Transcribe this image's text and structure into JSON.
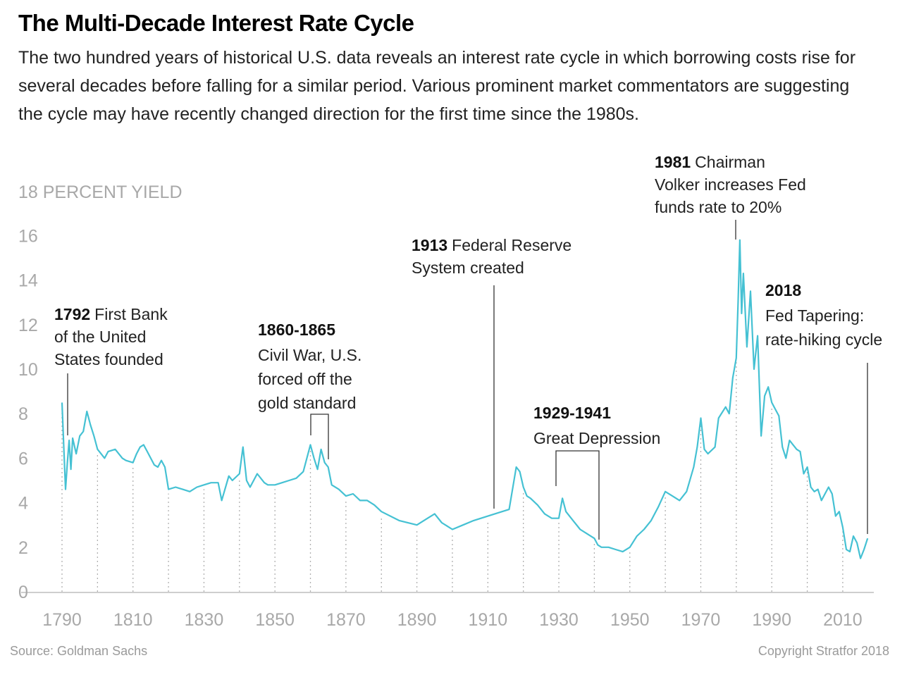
{
  "header": {
    "title": "The Multi-Decade Interest Rate Cycle",
    "subtitle": "The two hundred years of historical U.S. data reveals an interest rate cycle in which borrowing costs rise for several decades before falling for a similar period. Various prominent market commentators are suggesting the cycle may have recently changed direction for the first time since the 1980s."
  },
  "footer": {
    "source": "Source: Goldman Sachs",
    "copyright": "Copyright Stratfor 2018"
  },
  "colors": {
    "line": "#45c1d3",
    "axis": "#bdbdbd",
    "grid_dots": "#b0b0b0",
    "annotation_line": "#333333"
  },
  "chart_data": {
    "type": "line",
    "title": "The Multi-Decade Interest Rate Cycle",
    "ylabel": "18 PERCENT YIELD",
    "xlim": [
      1790,
      2018
    ],
    "ylim": [
      0,
      18
    ],
    "x_ticks": [
      "1790",
      "1810",
      "1830",
      "1850",
      "1870",
      "1890",
      "1910",
      "1930",
      "1950",
      "1970",
      "1990",
      "2010"
    ],
    "y_ticks": [
      "0",
      "2",
      "4",
      "6",
      "8",
      "10",
      "12",
      "14",
      "16"
    ],
    "grid": "dotted vertical lines at decade ticks",
    "series": [
      {
        "name": "",
        "x": [
          1790,
          1790.5,
          1791,
          1791.5,
          1792,
          1792.5,
          1793,
          1794,
          1795,
          1796,
          1797,
          1798,
          1799,
          1800,
          1801,
          1802,
          1803,
          1805,
          1807,
          1808,
          1810,
          1811,
          1812,
          1813,
          1814,
          1815,
          1816,
          1817,
          1818,
          1819,
          1820,
          1822,
          1824,
          1826,
          1828,
          1830,
          1832,
          1834,
          1835,
          1837,
          1838,
          1840,
          1841,
          1842,
          1843,
          1845,
          1847,
          1848,
          1850,
          1852,
          1854,
          1856,
          1858,
          1860,
          1861,
          1862,
          1863,
          1864,
          1865,
          1866,
          1868,
          1870,
          1872,
          1874,
          1876,
          1878,
          1880,
          1885,
          1890,
          1893,
          1895,
          1897,
          1900,
          1903,
          1906,
          1910,
          1914,
          1916,
          1918,
          1919,
          1920,
          1921,
          1922,
          1924,
          1926,
          1928,
          1930,
          1931,
          1932,
          1934,
          1936,
          1938,
          1940,
          1941,
          1942,
          1944,
          1946,
          1948,
          1950,
          1952,
          1954,
          1956,
          1958,
          1960,
          1962,
          1964,
          1966,
          1968,
          1969,
          1970,
          1971,
          1972,
          1974,
          1975,
          1977,
          1978,
          1979,
          1980,
          1980.5,
          1981,
          1981.5,
          1982,
          1983,
          1984,
          1985,
          1986,
          1987,
          1988,
          1989,
          1990,
          1991,
          1992,
          1993,
          1994,
          1995,
          1996,
          1997,
          1998,
          1999,
          2000,
          2001,
          2002,
          2003,
          2004,
          2005,
          2006,
          2007,
          2008,
          2009,
          2010,
          2011,
          2012,
          2013,
          2014,
          2015,
          2016,
          2017
        ],
        "y": [
          8.5,
          6.5,
          4.6,
          5.8,
          6.8,
          5.5,
          6.9,
          6.2,
          7.0,
          7.2,
          8.1,
          7.5,
          7.0,
          6.4,
          6.2,
          6.0,
          6.3,
          6.4,
          6.0,
          5.9,
          5.8,
          6.2,
          6.5,
          6.6,
          6.3,
          6.0,
          5.7,
          5.6,
          5.9,
          5.6,
          4.6,
          4.7,
          4.6,
          4.5,
          4.7,
          4.8,
          4.9,
          4.9,
          4.1,
          5.2,
          5.0,
          5.3,
          6.5,
          5.0,
          4.7,
          5.3,
          4.9,
          4.8,
          4.8,
          4.9,
          5.0,
          5.1,
          5.4,
          6.6,
          6.0,
          5.5,
          6.4,
          5.8,
          5.6,
          4.8,
          4.6,
          4.3,
          4.4,
          4.1,
          4.1,
          3.9,
          3.6,
          3.2,
          3.0,
          3.3,
          3.5,
          3.1,
          2.8,
          3.0,
          3.2,
          3.4,
          3.6,
          3.7,
          5.6,
          5.4,
          4.7,
          4.3,
          4.2,
          3.9,
          3.5,
          3.3,
          3.3,
          4.2,
          3.6,
          3.2,
          2.8,
          2.6,
          2.4,
          2.1,
          2.0,
          2.0,
          1.9,
          1.8,
          2.0,
          2.5,
          2.8,
          3.2,
          3.8,
          4.5,
          4.3,
          4.1,
          4.5,
          5.6,
          6.5,
          7.8,
          6.4,
          6.2,
          6.5,
          7.8,
          8.3,
          8.0,
          9.6,
          10.5,
          13.0,
          15.8,
          12.5,
          14.3,
          11.0,
          13.5,
          10.0,
          11.5,
          7.0,
          8.8,
          9.2,
          8.5,
          8.2,
          7.9,
          6.5,
          6.0,
          6.8,
          6.6,
          6.4,
          6.3,
          5.3,
          5.6,
          4.7,
          4.5,
          4.6,
          4.1,
          4.4,
          4.7,
          4.4,
          3.4,
          3.6,
          2.9,
          1.9,
          1.8,
          2.5,
          2.2,
          1.5,
          1.9,
          2.4
        ]
      }
    ],
    "annotations": [
      {
        "year": "1792",
        "text_lines": [
          "First Bank",
          "of the United",
          "States founded"
        ]
      },
      {
        "year": "1860-1865",
        "text_lines": [
          "Civil War, U.S.",
          "forced off the",
          "gold standard"
        ]
      },
      {
        "year": "1913",
        "text_lines": [
          "Federal Reserve",
          "System created"
        ]
      },
      {
        "year": "1929-1941",
        "text_lines": [
          "Great Depression"
        ]
      },
      {
        "year": "1981",
        "text_lines": [
          "Chairman",
          "Volker increases Fed",
          "funds rate to 20%"
        ]
      },
      {
        "year": "2018",
        "text_lines": [
          "Fed Tapering:",
          "rate-hiking cycle"
        ]
      }
    ]
  }
}
